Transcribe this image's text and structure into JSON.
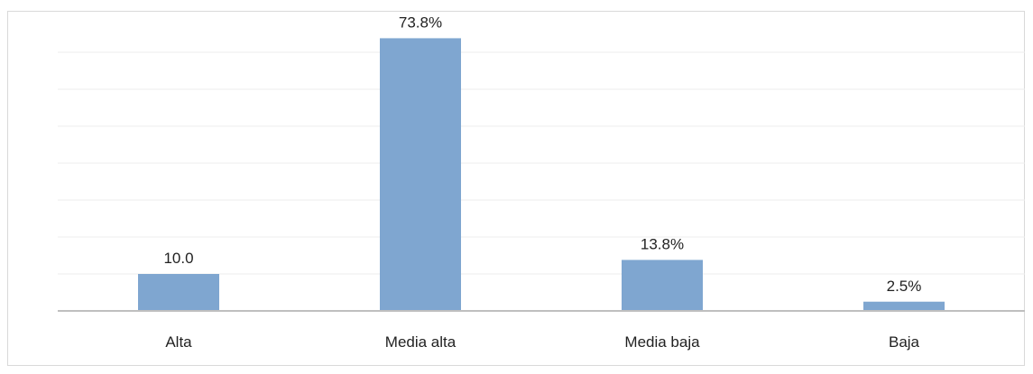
{
  "chart_data": {
    "type": "bar",
    "categories": [
      "Alta",
      "Media alta",
      "Media baja",
      "Baja"
    ],
    "values": [
      10.0,
      73.8,
      13.8,
      2.5
    ],
    "data_labels": [
      "10.0",
      "73.8%",
      "13.8%",
      "2.5%"
    ],
    "title": "",
    "xlabel": "",
    "ylabel": "",
    "ylim": [
      0,
      70
    ],
    "y_axis_visible": false,
    "grid": true,
    "legend": "none",
    "colors": {
      "bar": "#7fa6d0",
      "grid": "#ededed",
      "axis": "#bfbfbf",
      "text": "#222222"
    }
  }
}
